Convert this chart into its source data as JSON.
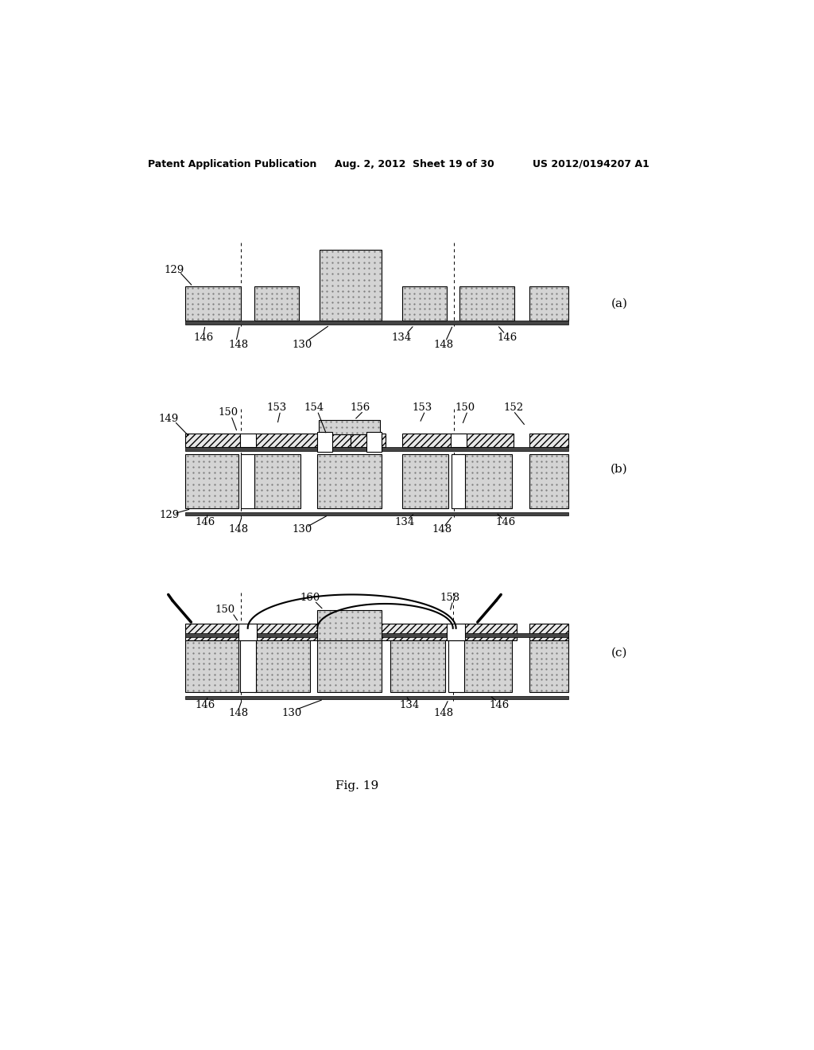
{
  "bg_color": "#ffffff",
  "header_left": "Patent Application Publication",
  "header_mid": "Aug. 2, 2012  Sheet 19 of 30",
  "header_right": "US 2012/0194207 A1",
  "fig_caption": "Fig. 19",
  "dot_color": "#cccccc",
  "hatch_color": "#d8d8d8",
  "substrate_color": "#555555",
  "line_color": "#000000"
}
